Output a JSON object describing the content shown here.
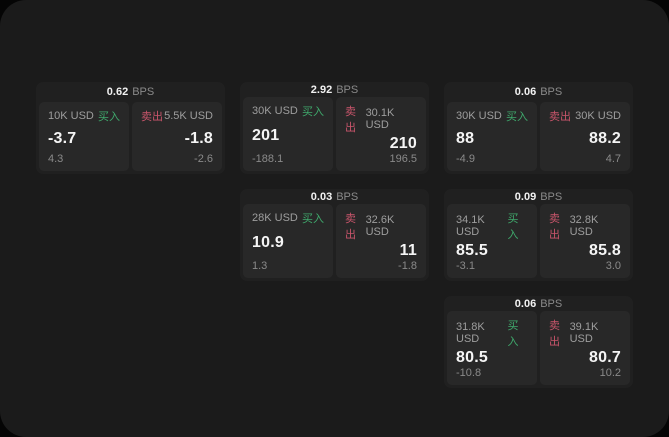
{
  "labels": {
    "bps_unit": "BPS",
    "buy": "买入",
    "sell": "卖出"
  },
  "colors": {
    "outer_background": "#050505",
    "surface": "#1b1b1b",
    "card": "#202020",
    "panel": "#282828",
    "buy_green": "#3fa96c",
    "sell_red": "#c9556b"
  },
  "cards": [
    {
      "bps": "0.62",
      "buy": {
        "amount": "10K USD",
        "value": "-3.7",
        "sub": "4.3"
      },
      "sell": {
        "amount": "5.5K USD",
        "value": "-1.8",
        "sub": "-2.6"
      }
    },
    {
      "bps": "2.92",
      "buy": {
        "amount": "30K USD",
        "value": "201",
        "sub": "-188.1"
      },
      "sell": {
        "amount": "30.1K USD",
        "value": "210",
        "sub": "196.5"
      }
    },
    {
      "bps": "0.06",
      "buy": {
        "amount": "30K USD",
        "value": "88",
        "sub": "-4.9"
      },
      "sell": {
        "amount": "30K USD",
        "value": "88.2",
        "sub": "4.7"
      }
    },
    {
      "bps": "0.03",
      "buy": {
        "amount": "28K USD",
        "value": "10.9",
        "sub": "1.3"
      },
      "sell": {
        "amount": "32.6K USD",
        "value": "11",
        "sub": "-1.8"
      }
    },
    {
      "bps": "0.09",
      "buy": {
        "amount": "34.1K USD",
        "value": "85.5",
        "sub": "-3.1"
      },
      "sell": {
        "amount": "32.8K USD",
        "value": "85.8",
        "sub": "3.0"
      }
    },
    {
      "bps": "0.06",
      "buy": {
        "amount": "31.8K USD",
        "value": "80.5",
        "sub": "-10.8"
      },
      "sell": {
        "amount": "39.1K USD",
        "value": "80.7",
        "sub": "10.2"
      }
    }
  ]
}
